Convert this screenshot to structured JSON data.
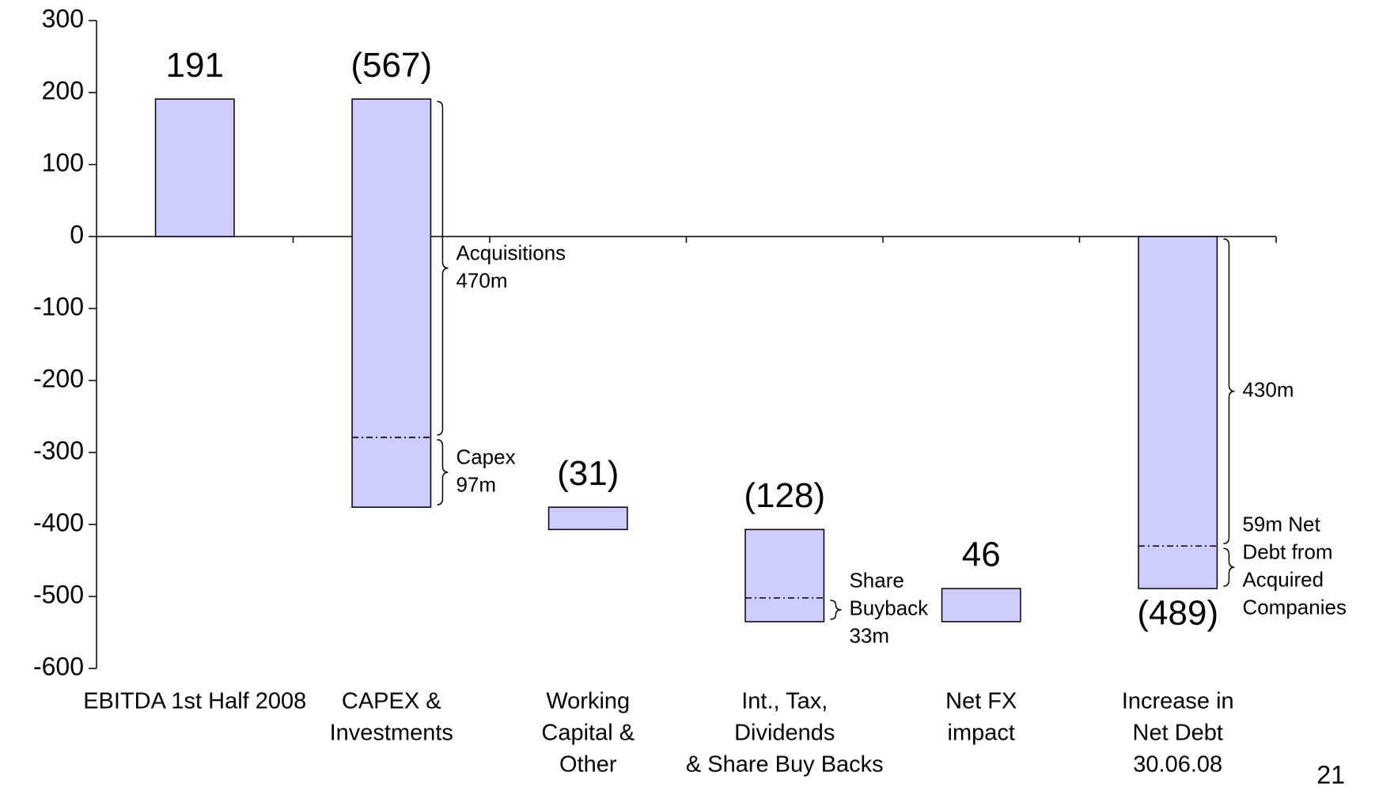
{
  "chart_data": {
    "type": "waterfall",
    "categories": [
      [
        "EBITDA 1st Half 2008"
      ],
      [
        "CAPEX &",
        "Investments"
      ],
      [
        "Working",
        "Capital &",
        "Other"
      ],
      [
        "Int., Tax,",
        "Dividends",
        "& Share Buy Backs"
      ],
      [
        "Net FX",
        "impact"
      ],
      [
        "Increase in",
        "Net Debt",
        "30.06.08"
      ]
    ],
    "values": [
      191,
      -567,
      -31,
      -128,
      46,
      -489
    ],
    "value_labels": [
      "191",
      "(567)",
      "(31)",
      "(128)",
      "46",
      "(489)"
    ],
    "last_is_total": true,
    "color": "#ccccff",
    "ylim": [
      -600,
      300
    ],
    "yticks": [
      -600,
      -500,
      -400,
      -300,
      -200,
      -100,
      0,
      100,
      200,
      300
    ],
    "breakdown": [
      null,
      [
        {
          "label": [
            "Acquisitions",
            "470m"
          ],
          "value": 470,
          "from": "top"
        },
        {
          "label": [
            "Capex",
            "97m"
          ],
          "value": 97,
          "from": "bottom"
        }
      ],
      null,
      [
        {
          "label": [
            "Share",
            "Buyback",
            "33m"
          ],
          "value": 33,
          "from": "bottom"
        }
      ],
      null,
      [
        {
          "label": [
            "430m"
          ],
          "value": 430,
          "from": "top"
        },
        {
          "label": [
            "59m Net",
            "Debt from",
            "Acquired",
            "Companies"
          ],
          "value": 59,
          "from": "bottom"
        }
      ]
    ]
  },
  "page_number": "21"
}
